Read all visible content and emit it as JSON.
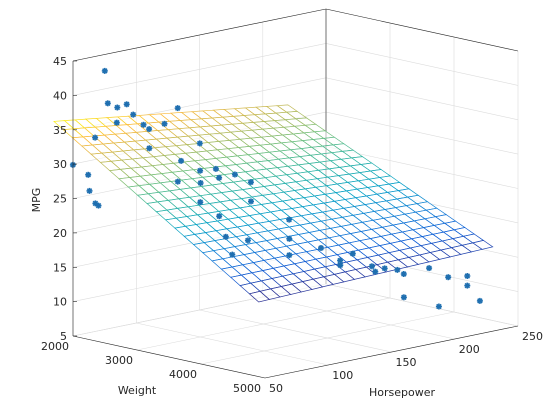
{
  "chart_data": {
    "type": "scatter3d-surface",
    "title": "",
    "xlabel": "Weight",
    "ylabel": "Horsepower",
    "zlabel": "MPG",
    "xlim": [
      2000,
      5000
    ],
    "ylim": [
      50,
      250
    ],
    "zlim": [
      5,
      45
    ],
    "x_ticks": [
      2000,
      3000,
      4000,
      5000
    ],
    "y_ticks": [
      50,
      100,
      150,
      200,
      250
    ],
    "z_ticks": [
      5,
      10,
      15,
      20,
      25,
      30,
      35,
      40,
      45
    ],
    "grid": true,
    "colors": {
      "points": "#1f6fb0",
      "surface_colormap": "parula"
    },
    "surface": {
      "x_range": [
        1800,
        5000
      ],
      "y_range": [
        45,
        230
      ],
      "grid_x": 22,
      "grid_y": 22,
      "model": "mpg = 49.0 - 0.0066*weight - 0.042*horsepower + 0.0000095*weight*horsepower",
      "coefficients": {
        "intercept": 49.0,
        "weight": -0.0066,
        "horsepower": -0.042,
        "weight_horsepower": 9.5e-06
      }
    },
    "points": [
      [
        1850,
        100,
        36.5
      ],
      [
        2200,
        65,
        43.4
      ],
      [
        1950,
        70,
        33.0
      ],
      [
        2050,
        75,
        38.0
      ],
      [
        2100,
        80,
        37.3
      ],
      [
        2150,
        90,
        36.0
      ],
      [
        2250,
        72,
        35.7
      ],
      [
        2350,
        88,
        35.0
      ],
      [
        2300,
        95,
        34.0
      ],
      [
        2500,
        85,
        32.0
      ],
      [
        2600,
        92,
        35.5
      ],
      [
        2450,
        110,
        36.8
      ],
      [
        2400,
        130,
        30.8
      ],
      [
        2700,
        100,
        30.0
      ],
      [
        2800,
        110,
        28.4
      ],
      [
        2900,
        120,
        27.2
      ],
      [
        2650,
        118,
        26.0
      ],
      [
        2750,
        125,
        28.0
      ],
      [
        2550,
        105,
        26.5
      ],
      [
        2850,
        135,
        27.0
      ],
      [
        3000,
        140,
        26.0
      ],
      [
        3100,
        95,
        25.0
      ],
      [
        1900,
        55,
        29.5
      ],
      [
        2000,
        62,
        28.0
      ],
      [
        2100,
        58,
        26.0
      ],
      [
        2200,
        60,
        24.0
      ],
      [
        2350,
        50,
        25.0
      ],
      [
        3000,
        115,
        22.0
      ],
      [
        3200,
        130,
        24.0
      ],
      [
        3300,
        105,
        20.0
      ],
      [
        3400,
        150,
        21.0
      ],
      [
        3500,
        100,
        18.0
      ],
      [
        3600,
        140,
        19.0
      ],
      [
        3800,
        155,
        17.5
      ],
      [
        4000,
        170,
        16.5
      ],
      [
        4200,
        150,
        16.0
      ],
      [
        4400,
        175,
        15.0
      ],
      [
        4500,
        185,
        14.0
      ],
      [
        4600,
        200,
        14.5
      ],
      [
        4700,
        210,
        13.0
      ],
      [
        4800,
        220,
        13.0
      ],
      [
        4900,
        215,
        12.0
      ],
      [
        3900,
        165,
        15.5
      ],
      [
        4100,
        180,
        14.5
      ],
      [
        4300,
        190,
        14.0
      ],
      [
        4600,
        180,
        11.0
      ],
      [
        4800,
        230,
        9.0
      ],
      [
        4950,
        190,
        10.0
      ],
      [
        4450,
        165,
        15.0
      ],
      [
        3700,
        135,
        17.0
      ],
      [
        3350,
        120,
        19.0
      ]
    ]
  }
}
